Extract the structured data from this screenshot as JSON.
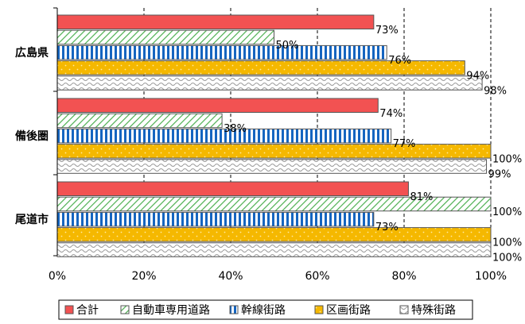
{
  "chart_data": {
    "type": "bar",
    "orientation": "horizontal",
    "categories": [
      "広島県",
      "備後圏",
      "尾道市"
    ],
    "series": [
      {
        "name": "合計",
        "values": [
          73,
          74,
          81
        ],
        "labels": [
          "73%",
          "74%",
          "81%"
        ]
      },
      {
        "name": "自動車専用道路",
        "values": [
          50,
          38,
          100
        ],
        "labels": [
          "50%",
          "38%",
          "100%"
        ]
      },
      {
        "name": "幹線街路",
        "values": [
          76,
          77,
          73
        ],
        "labels": [
          "76%",
          "77%",
          "73%"
        ]
      },
      {
        "name": "区画街路",
        "values": [
          94,
          100,
          100
        ],
        "labels": [
          "94%",
          "100%",
          "100%"
        ]
      },
      {
        "name": "特殊街路",
        "values": [
          98,
          99,
          100
        ],
        "labels": [
          "98%",
          "99%",
          "100%"
        ]
      }
    ],
    "xlim": [
      0,
      100
    ],
    "xticks": [
      "0%",
      "20%",
      "40%",
      "60%",
      "80%",
      "100%"
    ],
    "grid": "vertical dashed",
    "legend_position": "bottom"
  }
}
